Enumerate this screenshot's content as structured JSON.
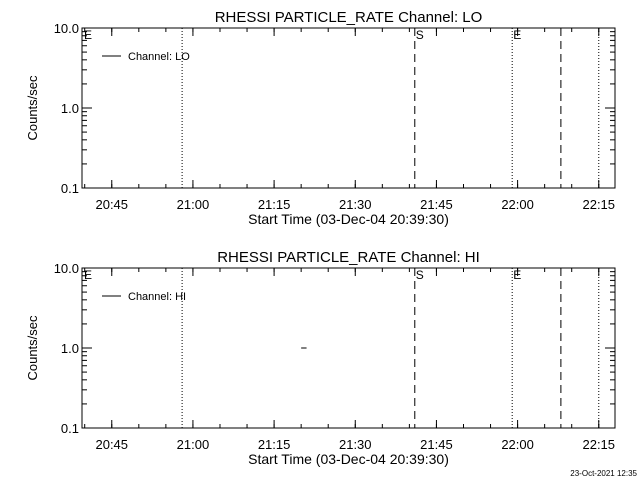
{
  "chart_data": [
    {
      "type": "line",
      "title": "RHESSI PARTICLE_RATE Channel: LO",
      "xlabel": "Start Time (03-Dec-04 20:39:30)",
      "ylabel": "Counts/sec",
      "yscale": "log",
      "xlim": [
        "20:39:30",
        "22:18:00"
      ],
      "ylim": [
        0.1,
        10.0
      ],
      "x_ticks": [
        "20:45",
        "21:00",
        "21:15",
        "21:30",
        "21:45",
        "22:00",
        "22:15"
      ],
      "y_ticks": [
        "0.1",
        "1.0",
        "10.0"
      ],
      "legend": {
        "position": "top-left",
        "entries": [
          "Channel: LO"
        ]
      },
      "series": [
        {
          "name": "Channel: LO",
          "x": [],
          "y": []
        }
      ],
      "markers": [
        {
          "time": "20:49",
          "label": "E",
          "style": "dotted",
          "label_at": "left-edge"
        },
        {
          "time": "20:58",
          "label": "",
          "style": "dotted"
        },
        {
          "time": "21:41",
          "label": "S",
          "style": "dashed"
        },
        {
          "time": "21:59",
          "label": "E",
          "style": "dotted"
        },
        {
          "time": "22:08",
          "label": "",
          "style": "dashed"
        },
        {
          "time": "22:15",
          "label": "",
          "style": "dotted"
        }
      ]
    },
    {
      "type": "line",
      "title": "RHESSI PARTICLE_RATE Channel: HI",
      "xlabel": "Start Time (03-Dec-04 20:39:30)",
      "ylabel": "Counts/sec",
      "yscale": "log",
      "xlim": [
        "20:39:30",
        "22:18:00"
      ],
      "ylim": [
        0.1,
        10.0
      ],
      "x_ticks": [
        "20:45",
        "21:00",
        "21:15",
        "21:30",
        "21:45",
        "22:00",
        "22:15"
      ],
      "y_ticks": [
        "0.1",
        "1.0",
        "10.0"
      ],
      "legend": {
        "position": "top-left",
        "entries": [
          "Channel: HI"
        ]
      },
      "series": [
        {
          "name": "Channel: HI",
          "x": [
            "21:20",
            "21:21"
          ],
          "y": [
            1.0,
            1.0
          ]
        }
      ],
      "markers": [
        {
          "time": "20:49",
          "label": "E",
          "style": "dotted",
          "label_at": "left-edge"
        },
        {
          "time": "20:58",
          "label": "",
          "style": "dotted"
        },
        {
          "time": "21:41",
          "label": "S",
          "style": "dashed"
        },
        {
          "time": "21:59",
          "label": "E",
          "style": "dotted"
        },
        {
          "time": "22:08",
          "label": "",
          "style": "dashed"
        },
        {
          "time": "22:15",
          "label": "",
          "style": "dotted"
        }
      ]
    }
  ],
  "footer": {
    "timestamp": "23-Oct-2021 12:35"
  }
}
